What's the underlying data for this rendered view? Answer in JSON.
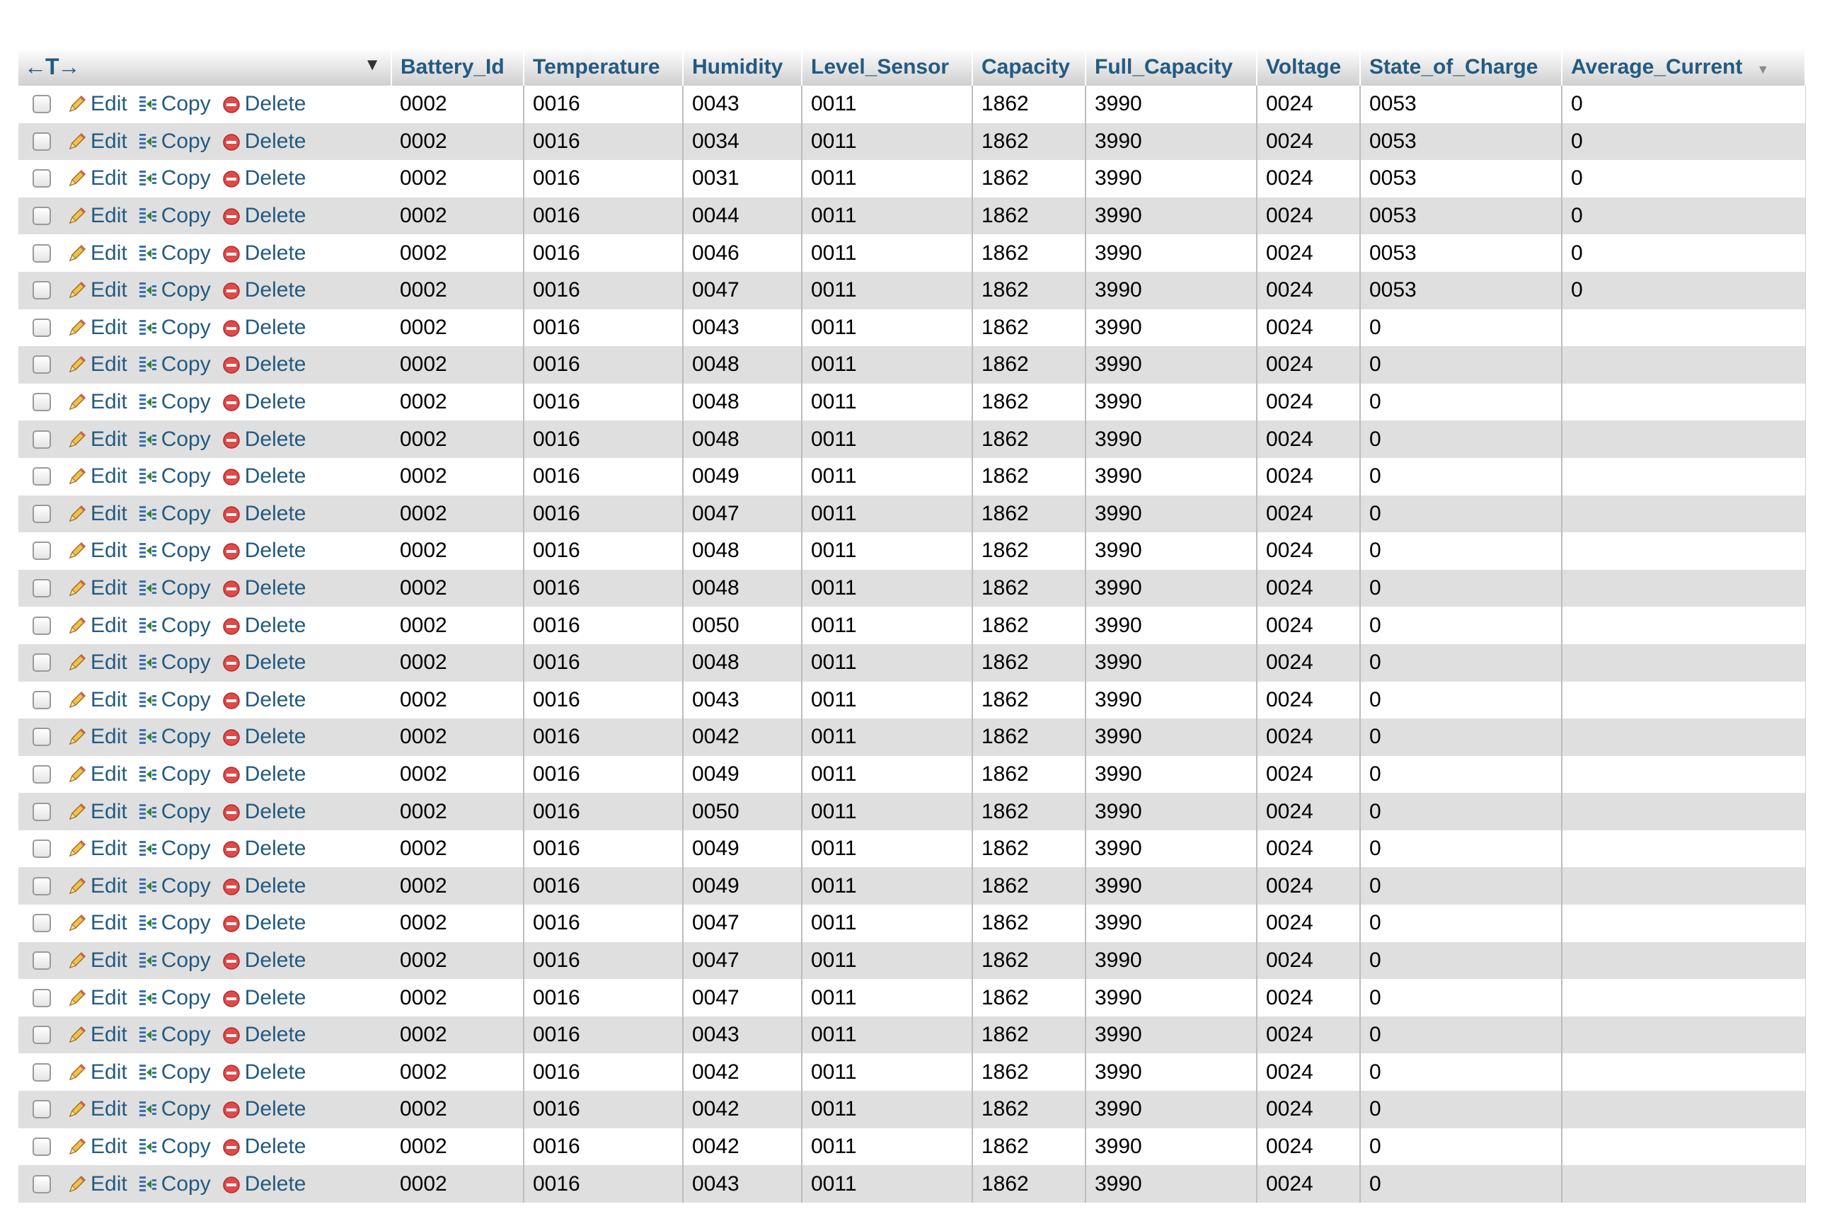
{
  "table": {
    "columns": [
      "Battery_Id",
      "Temperature",
      "Humidity",
      "Level_Sensor",
      "Capacity",
      "Full_Capacity",
      "Voltage",
      "State_of_Charge",
      "Average_Current"
    ],
    "actions": {
      "edit": "Edit",
      "copy": "Copy",
      "delete": "Delete"
    },
    "header_controls": {
      "arrows": "←T→"
    },
    "rows": [
      [
        "0002",
        "0016",
        "0043",
        "0011",
        "1862",
        "3990",
        "0024",
        "0053",
        "0"
      ],
      [
        "0002",
        "0016",
        "0034",
        "0011",
        "1862",
        "3990",
        "0024",
        "0053",
        "0"
      ],
      [
        "0002",
        "0016",
        "0031",
        "0011",
        "1862",
        "3990",
        "0024",
        "0053",
        "0"
      ],
      [
        "0002",
        "0016",
        "0044",
        "0011",
        "1862",
        "3990",
        "0024",
        "0053",
        "0"
      ],
      [
        "0002",
        "0016",
        "0046",
        "0011",
        "1862",
        "3990",
        "0024",
        "0053",
        "0"
      ],
      [
        "0002",
        "0016",
        "0047",
        "0011",
        "1862",
        "3990",
        "0024",
        "0053",
        "0"
      ],
      [
        "0002",
        "0016",
        "0043",
        "0011",
        "1862",
        "3990",
        "0024",
        "0",
        ""
      ],
      [
        "0002",
        "0016",
        "0048",
        "0011",
        "1862",
        "3990",
        "0024",
        "0",
        ""
      ],
      [
        "0002",
        "0016",
        "0048",
        "0011",
        "1862",
        "3990",
        "0024",
        "0",
        ""
      ],
      [
        "0002",
        "0016",
        "0048",
        "0011",
        "1862",
        "3990",
        "0024",
        "0",
        ""
      ],
      [
        "0002",
        "0016",
        "0049",
        "0011",
        "1862",
        "3990",
        "0024",
        "0",
        ""
      ],
      [
        "0002",
        "0016",
        "0047",
        "0011",
        "1862",
        "3990",
        "0024",
        "0",
        ""
      ],
      [
        "0002",
        "0016",
        "0048",
        "0011",
        "1862",
        "3990",
        "0024",
        "0",
        ""
      ],
      [
        "0002",
        "0016",
        "0048",
        "0011",
        "1862",
        "3990",
        "0024",
        "0",
        ""
      ],
      [
        "0002",
        "0016",
        "0050",
        "0011",
        "1862",
        "3990",
        "0024",
        "0",
        ""
      ],
      [
        "0002",
        "0016",
        "0048",
        "0011",
        "1862",
        "3990",
        "0024",
        "0",
        ""
      ],
      [
        "0002",
        "0016",
        "0043",
        "0011",
        "1862",
        "3990",
        "0024",
        "0",
        ""
      ],
      [
        "0002",
        "0016",
        "0042",
        "0011",
        "1862",
        "3990",
        "0024",
        "0",
        ""
      ],
      [
        "0002",
        "0016",
        "0049",
        "0011",
        "1862",
        "3990",
        "0024",
        "0",
        ""
      ],
      [
        "0002",
        "0016",
        "0050",
        "0011",
        "1862",
        "3990",
        "0024",
        "0",
        ""
      ],
      [
        "0002",
        "0016",
        "0049",
        "0011",
        "1862",
        "3990",
        "0024",
        "0",
        ""
      ],
      [
        "0002",
        "0016",
        "0049",
        "0011",
        "1862",
        "3990",
        "0024",
        "0",
        ""
      ],
      [
        "0002",
        "0016",
        "0047",
        "0011",
        "1862",
        "3990",
        "0024",
        "0",
        ""
      ],
      [
        "0002",
        "0016",
        "0047",
        "0011",
        "1862",
        "3990",
        "0024",
        "0",
        ""
      ],
      [
        "0002",
        "0016",
        "0047",
        "0011",
        "1862",
        "3990",
        "0024",
        "0",
        ""
      ],
      [
        "0002",
        "0016",
        "0043",
        "0011",
        "1862",
        "3990",
        "0024",
        "0",
        ""
      ],
      [
        "0002",
        "0016",
        "0042",
        "0011",
        "1862",
        "3990",
        "0024",
        "0",
        ""
      ],
      [
        "0002",
        "0016",
        "0042",
        "0011",
        "1862",
        "3990",
        "0024",
        "0",
        ""
      ],
      [
        "0002",
        "0016",
        "0042",
        "0011",
        "1862",
        "3990",
        "0024",
        "0",
        ""
      ],
      [
        "0002",
        "0016",
        "0043",
        "0011",
        "1862",
        "3990",
        "0024",
        "0",
        ""
      ]
    ]
  },
  "colors": {
    "link": "#235a81",
    "row_even": "#dfdfdf",
    "row_odd": "#ffffff",
    "delete_icon": "#e04a4a",
    "pencil_icon": "#e0a020"
  },
  "icons": {
    "edit": "pencil-icon",
    "copy": "copy-rows-icon",
    "delete": "delete-circle-icon",
    "sort": "sort-triangle-icon",
    "chevron": "chevron-down-icon"
  }
}
